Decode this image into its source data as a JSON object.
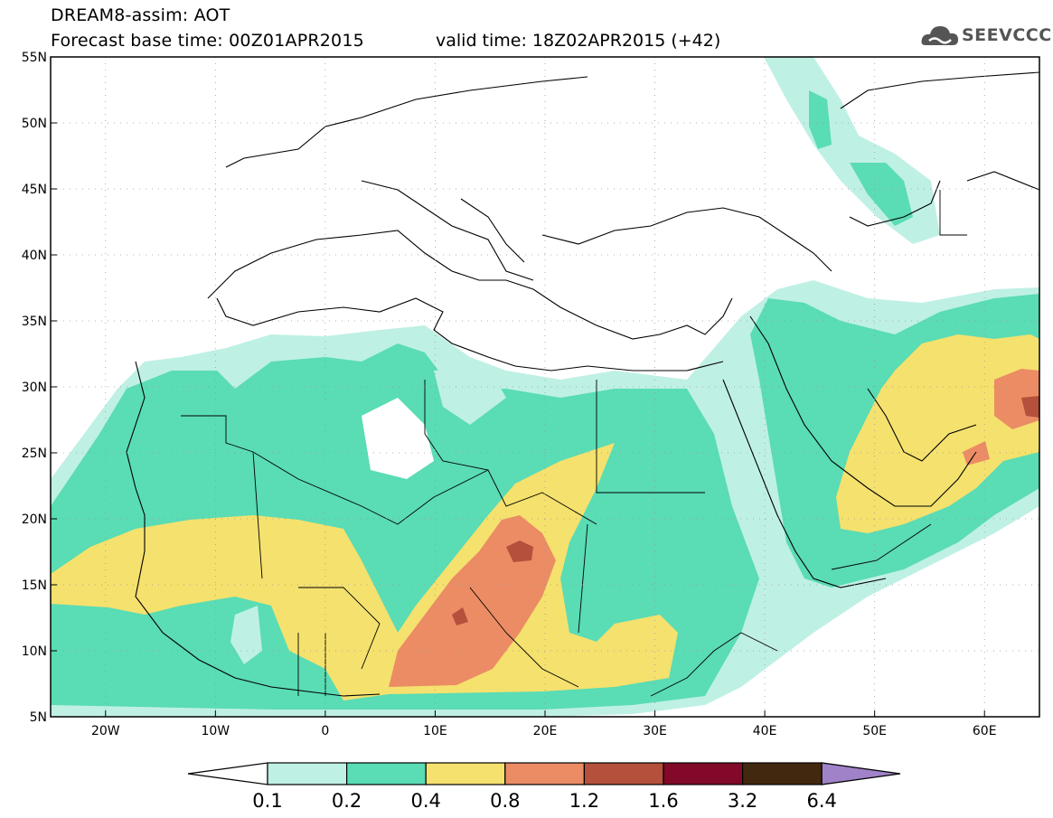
{
  "header": {
    "line1": "DREAM8-assim: AOT",
    "line2": "Forecast base time: 00Z01APR2015",
    "valid": "valid time: 18Z02APR2015 (+42)"
  },
  "logo": {
    "text": "SEEVCCC",
    "icon": "cloud-icon"
  },
  "map": {
    "lat_labels": [
      "55N",
      "50N",
      "45N",
      "40N",
      "35N",
      "30N",
      "25N",
      "20N",
      "15N",
      "10N",
      "5N"
    ],
    "lon_labels": [
      "20W",
      "10W",
      "0",
      "10E",
      "20E",
      "30E",
      "40E",
      "50E",
      "60E"
    ],
    "lat_range": [
      5,
      55
    ],
    "lon_range": [
      -25,
      65
    ],
    "grid": "dotted"
  },
  "legend": {
    "levels": [
      "0.1",
      "0.2",
      "0.4",
      "0.8",
      "1.2",
      "1.6",
      "3.2",
      "6.4"
    ],
    "colors": [
      "#ffffff",
      "#bff0e4",
      "#5adcb4",
      "#f5e16e",
      "#eb8c64",
      "#b4503c",
      "#820a28",
      "#41280f",
      "#a082c8"
    ]
  },
  "colors": {
    "c01": "#bff0e4",
    "c02": "#5adcb4",
    "c04": "#f5e16e",
    "c08": "#eb8c64",
    "c12": "#b4503c"
  }
}
